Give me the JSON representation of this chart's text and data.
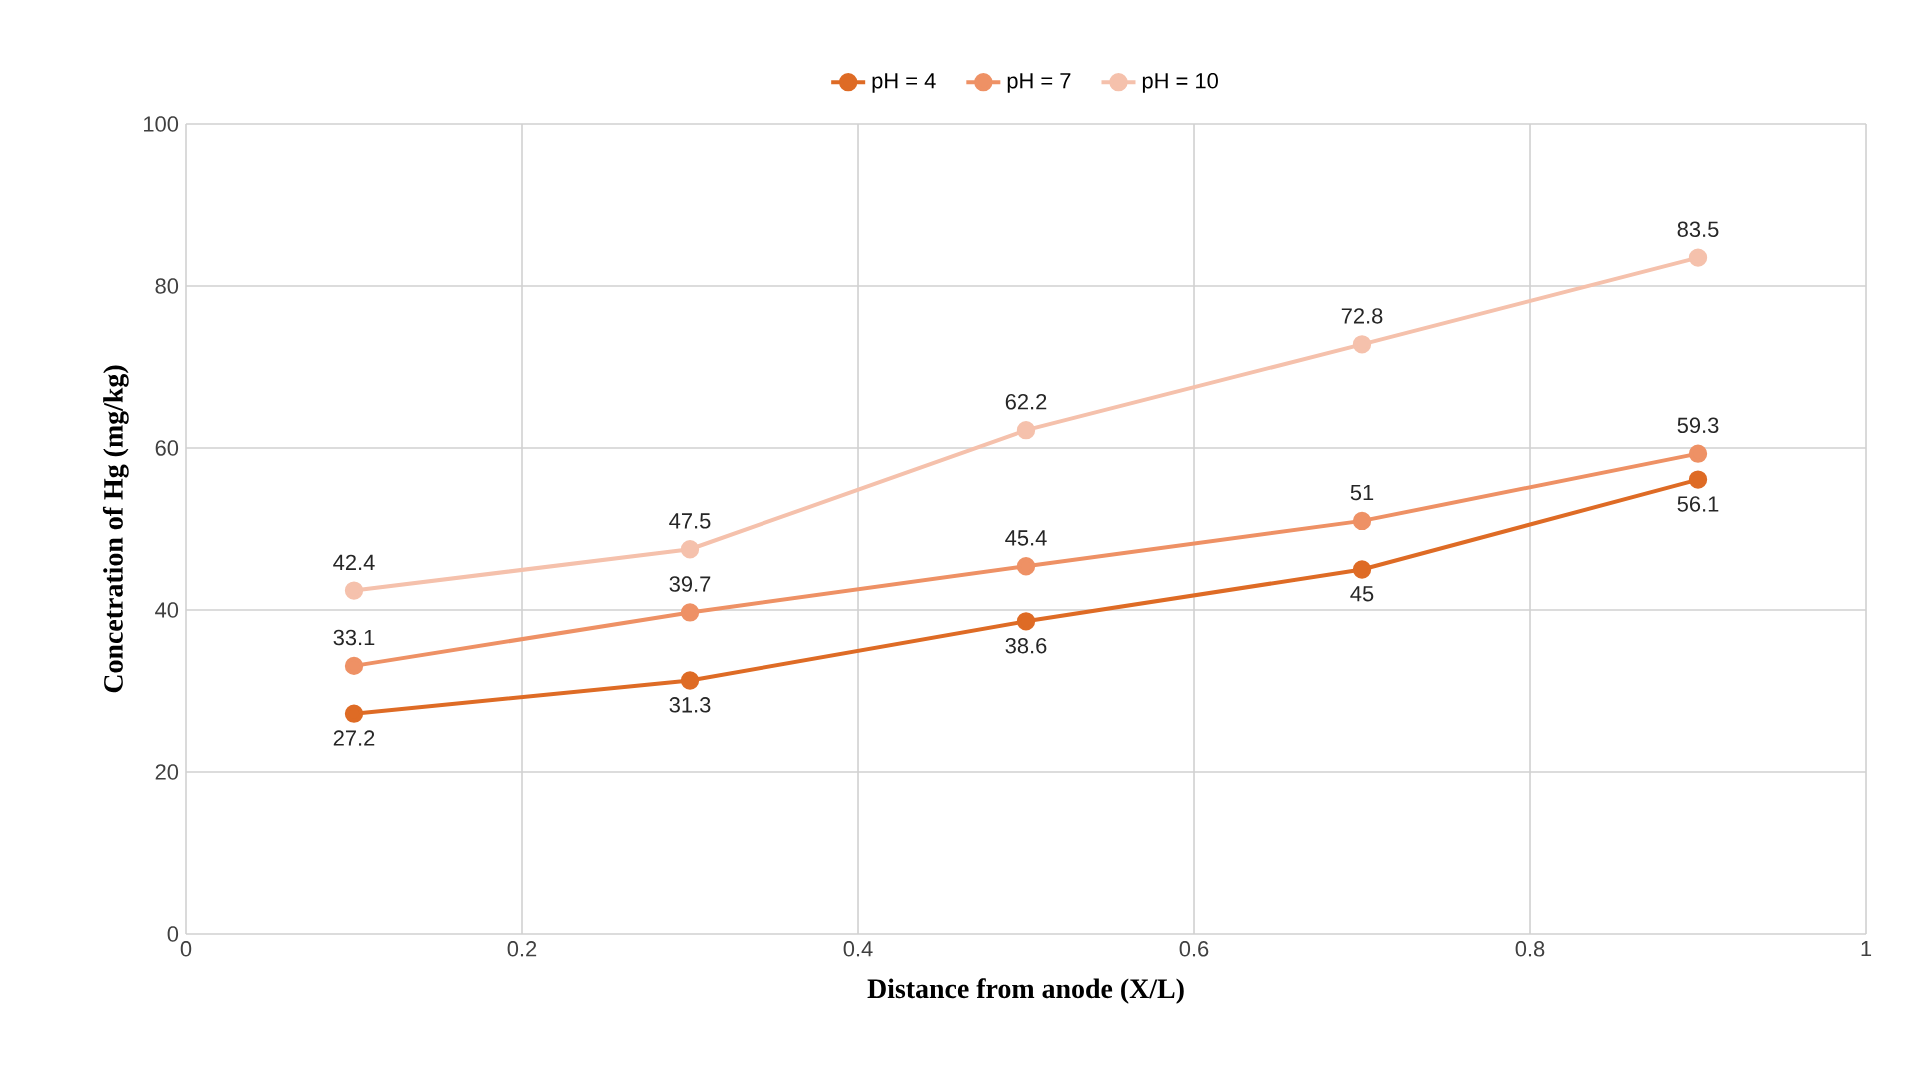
{
  "chart_data": {
    "type": "line",
    "xlabel": "Distance from anode (X/L)",
    "ylabel": "Concetration of Hg (mg/kg)",
    "x": [
      0.1,
      0.3,
      0.5,
      0.7,
      0.9
    ],
    "series": [
      {
        "name": "pH = 4",
        "color": "#de6b25",
        "values": [
          27.2,
          31.3,
          38.6,
          45,
          56.1
        ]
      },
      {
        "name": "pH = 7",
        "color": "#ee9165",
        "values": [
          33.1,
          39.7,
          45.4,
          51,
          59.3
        ]
      },
      {
        "name": "pH = 10",
        "color": "#f5c1ac",
        "values": [
          42.4,
          47.5,
          62.2,
          72.8,
          83.5
        ]
      }
    ],
    "xlim": [
      0,
      1
    ],
    "xticks": [
      0,
      0.2,
      0.4,
      0.6,
      0.8,
      1
    ],
    "ylim": [
      0,
      100
    ],
    "yticks": [
      0,
      20,
      40,
      60,
      80,
      100
    ],
    "grid": true,
    "legend": "top",
    "marker": "circle",
    "line_style": "solid",
    "data_labels": true
  }
}
